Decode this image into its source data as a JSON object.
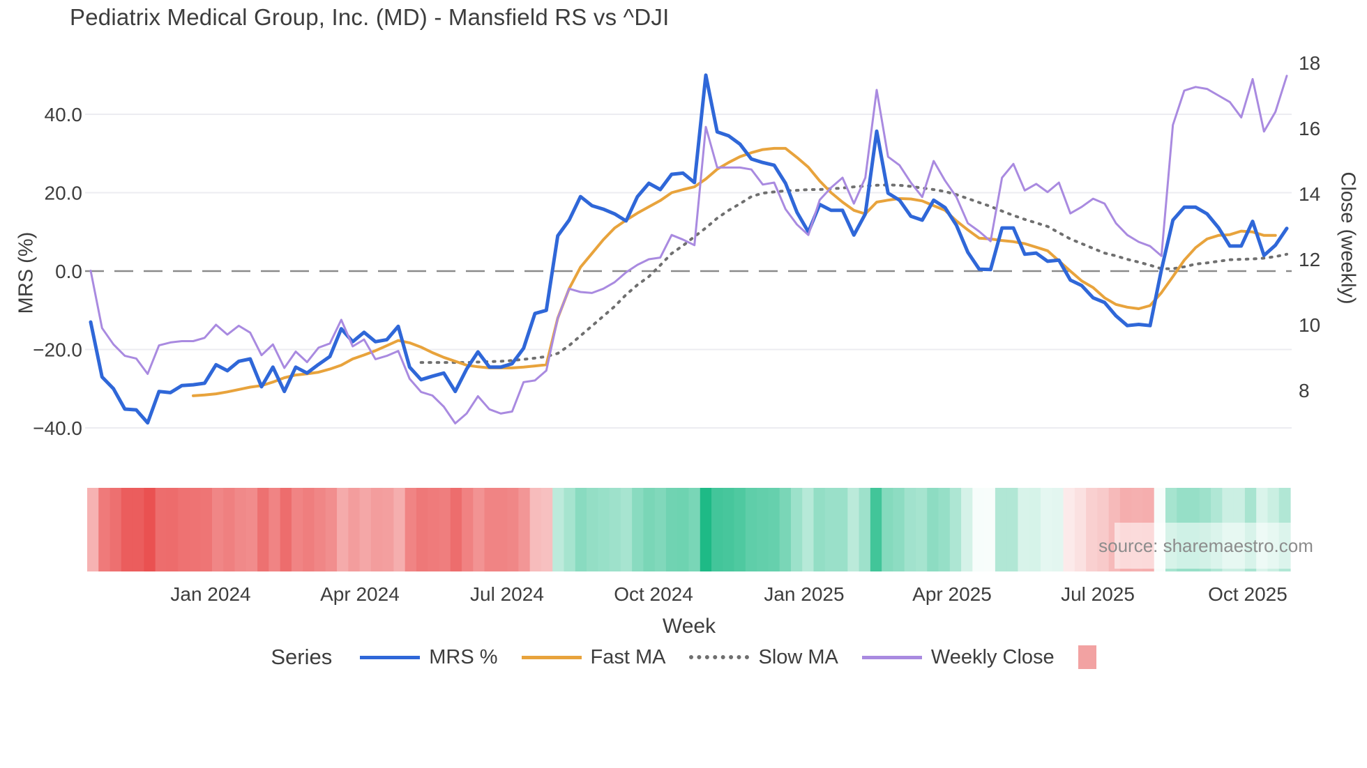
{
  "title": "Pediatrix Medical Group, Inc. (MD) - Mansfield RS vs ^DJI",
  "source": "source: sharemaestro.com",
  "axes": {
    "y_left": {
      "title": "MRS (%)",
      "ticks": [
        {
          "value": 40,
          "label": "40.0"
        },
        {
          "value": 20,
          "label": "20.0"
        },
        {
          "value": 0,
          "label": "0.0"
        },
        {
          "value": -20,
          "label": "−20.0"
        },
        {
          "value": -40,
          "label": "−40.0"
        }
      ]
    },
    "y_right": {
      "title": "Close (weekly)",
      "ticks": [
        {
          "value": 18,
          "label": "18"
        },
        {
          "value": 16,
          "label": "16"
        },
        {
          "value": 14,
          "label": "14"
        },
        {
          "value": 12,
          "label": "12"
        },
        {
          "value": 10,
          "label": "10"
        },
        {
          "value": 8,
          "label": "8"
        }
      ]
    },
    "x": {
      "title": "Week",
      "ticks": [
        {
          "pos": 10.53,
          "label": "Jan 2024"
        },
        {
          "pos": 23.63,
          "label": "Apr 2024"
        },
        {
          "pos": 36.55,
          "label": "Jul 2024"
        },
        {
          "pos": 49.41,
          "label": "Oct 2024"
        },
        {
          "pos": 62.63,
          "label": "Jan 2025"
        },
        {
          "pos": 75.61,
          "label": "Apr 2025"
        },
        {
          "pos": 88.41,
          "label": "Jul 2025"
        },
        {
          "pos": 101.57,
          "label": "Oct 2025"
        }
      ]
    }
  },
  "legend": {
    "title": "Series",
    "items": [
      {
        "label": "MRS %",
        "color": "#2f67d8",
        "style": "solid"
      },
      {
        "label": "Fast MA",
        "color": "#e8a33c",
        "style": "solid"
      },
      {
        "label": "Slow MA",
        "color": "#6f6f6f",
        "style": "dotted"
      },
      {
        "label": "Weekly Close",
        "color": "#a98ae0",
        "style": "solid"
      },
      {
        "label": "",
        "color": "#f2a2a2",
        "style": "square"
      }
    ]
  },
  "colors": {
    "grid": "#ececf1",
    "zero_line": "#8a8a8a",
    "text": "#3d3d3d",
    "mrs_line": "#2f67d8",
    "fast_ma_line": "#e8a33c",
    "slow_ma_line": "#6f6f6f",
    "close_line": "#a98ae0",
    "heat_negative": "#e94d4d",
    "heat_positive": "#1eba86"
  },
  "chart_data": {
    "type": "line",
    "x_unit": "week_index",
    "n_weeks": 106,
    "x_range_note": "weekly data, ~Oct 2023 through ~Oct 2025",
    "y_left_axis": {
      "label": "MRS (%)",
      "ticks": [
        40,
        20,
        0,
        -20,
        -40
      ]
    },
    "y_right_axis": {
      "label": "Close (weekly)",
      "ticks": [
        18,
        16,
        14,
        12,
        10,
        8
      ]
    },
    "zero_line": 0,
    "grid": true,
    "legend_position": "bottom",
    "series": [
      {
        "name": "MRS %",
        "axis": "left",
        "style": "solid",
        "width": 5,
        "start_index": 0,
        "values": [
          -13,
          -27,
          -30,
          -35.2,
          -35.4,
          -38.7,
          -30.7,
          -31,
          -29.2,
          -29,
          -28.6,
          -23.9,
          -25.4,
          -23,
          -22.4,
          -29.5,
          -24.5,
          -30.7,
          -24.5,
          -26,
          -23.8,
          -21.8,
          -14.7,
          -18,
          -15.6,
          -18,
          -17.5,
          -14.1,
          -24.5,
          -27.7,
          -26.8,
          -26,
          -30.7,
          -25,
          -20.6,
          -24.5,
          -24.5,
          -23.6,
          -19.7,
          -10.8,
          -10,
          9,
          13,
          19,
          16.7,
          15.8,
          14.6,
          12.8,
          19,
          22.4,
          20.8,
          24.7,
          25,
          22.6,
          50,
          35.5,
          34.5,
          32.4,
          28.6,
          27.7,
          27,
          22.4,
          15,
          10,
          17,
          15.5,
          15.5,
          9.2,
          14.6,
          35.7,
          19.9,
          18.1,
          14,
          13,
          18.1,
          16.2,
          11.7,
          4.8,
          0.5,
          0.4,
          11,
          11,
          4.3,
          4.6,
          2.5,
          2.8,
          -2.3,
          -3.7,
          -6.8,
          -8,
          -11.4,
          -13.9,
          -13.6,
          -13.9,
          0.4,
          13,
          16.3,
          16.3,
          14.6,
          11.1,
          6.4,
          6.4,
          12.7,
          4,
          6.6,
          10.9
        ]
      },
      {
        "name": "Fast MA",
        "axis": "left",
        "style": "solid",
        "width": 4,
        "start_index": 9,
        "values": [
          -31.8,
          -31.6,
          -31.3,
          -30.8,
          -30.2,
          -29.6,
          -29.2,
          -28.3,
          -27.2,
          -26.5,
          -26.2,
          -25.8,
          -25.0,
          -24.0,
          -22.4,
          -21.4,
          -20.3,
          -19.0,
          -17.7,
          -18.3,
          -19.4,
          -20.8,
          -22.0,
          -23.0,
          -24.0,
          -24.4,
          -24.7,
          -24.7,
          -24.7,
          -24.5,
          -24.2,
          -23.9,
          -12,
          -4.5,
          1,
          4.5,
          8,
          11,
          13,
          14.8,
          16.4,
          18,
          20,
          20.8,
          21.5,
          23.5,
          26,
          27.7,
          29.2,
          30.2,
          31,
          31.3,
          31.3,
          29,
          26.5,
          23,
          20,
          17.6,
          15.5,
          14.6,
          17.6,
          18.1,
          18.5,
          18.4,
          17.9,
          16.7,
          15.5,
          12.8,
          10.5,
          8.4,
          8.2,
          7.8,
          7.5,
          7.0,
          6.1,
          5.2,
          2.6,
          0,
          -2.5,
          -4.2,
          -6.8,
          -8.5,
          -9.2,
          -9.6,
          -8.8,
          -5.5,
          -1.4,
          2.8,
          6,
          8.2,
          9.1,
          9.3,
          10.2,
          10,
          9.1,
          9.1
        ]
      },
      {
        "name": "Slow MA",
        "axis": "left",
        "style": "dotted",
        "width": 4,
        "start_index": 29,
        "values": [
          -23.3,
          -23.3,
          -23.3,
          -23.3,
          -23.3,
          -23.2,
          -23.1,
          -23.0,
          -22.8,
          -22.5,
          -22.2,
          -21.8,
          -21.0,
          -19.0,
          -16.5,
          -14.0,
          -11.5,
          -9.0,
          -6.0,
          -3.5,
          -1.4,
          1.5,
          4.5,
          6.5,
          8.8,
          11,
          13.5,
          15.5,
          17.2,
          19,
          19.9,
          20.2,
          20.5,
          20.6,
          20.8,
          20.8,
          21,
          21.2,
          21.5,
          21.7,
          21.9,
          22,
          21.9,
          21.6,
          21.2,
          20.8,
          20.3,
          19.5,
          18.5,
          17.5,
          16.5,
          15.3,
          14.2,
          13.2,
          12.3,
          11.4,
          9.8,
          8.2,
          7.0,
          5.8,
          4.6,
          3.9,
          3.0,
          2.3,
          1.5,
          0.6,
          0.6,
          1.1,
          1.8,
          2.1,
          2.5,
          2.9,
          3.0,
          3.1,
          3.3,
          3.7,
          4.3
        ]
      },
      {
        "name": "Weekly Close",
        "axis": "right",
        "style": "solid",
        "width": 3,
        "start_index": 0,
        "values": [
          11.65,
          9.9,
          9.4,
          9.05,
          8.97,
          8.5,
          9.37,
          9.46,
          9.5,
          9.5,
          9.6,
          10.0,
          9.7,
          9.97,
          9.76,
          9.07,
          9.4,
          8.68,
          9.18,
          8.86,
          9.3,
          9.43,
          10.15,
          9.34,
          9.55,
          8.95,
          9.05,
          9.2,
          8.35,
          7.95,
          7.84,
          7.5,
          6.99,
          7.29,
          7.82,
          7.42,
          7.29,
          7.35,
          8.25,
          8.3,
          8.6,
          10.2,
          11.1,
          11.0,
          10.97,
          11.1,
          11.3,
          11.6,
          11.83,
          12.0,
          12.05,
          12.74,
          12.6,
          12.43,
          16.04,
          14.8,
          14.8,
          14.8,
          14.74,
          14.28,
          14.34,
          13.53,
          13.06,
          12.74,
          13.81,
          14.19,
          14.49,
          13.7,
          14.49,
          17.17,
          15.13,
          14.87,
          14.34,
          13.9,
          15.0,
          14.4,
          13.9,
          13.1,
          12.85,
          12.55,
          14.49,
          14.91,
          14.1,
          14.3,
          14.05,
          14.34,
          13.4,
          13.6,
          13.85,
          13.7,
          13.1,
          12.74,
          12.53,
          12.4,
          12.1,
          16.1,
          17.15,
          17.26,
          17.2,
          17.0,
          16.8,
          16.33,
          17.5,
          15.9,
          16.5,
          17.6
        ]
      }
    ],
    "heatmap_strip": {
      "based_on": "MRS %",
      "negative_color": "#e94d4d",
      "positive_color": "#1eba86",
      "negative_scale": 40,
      "positive_scale": 45,
      "note": "one cell per week, red = negative MRS, green = positive MRS"
    }
  }
}
